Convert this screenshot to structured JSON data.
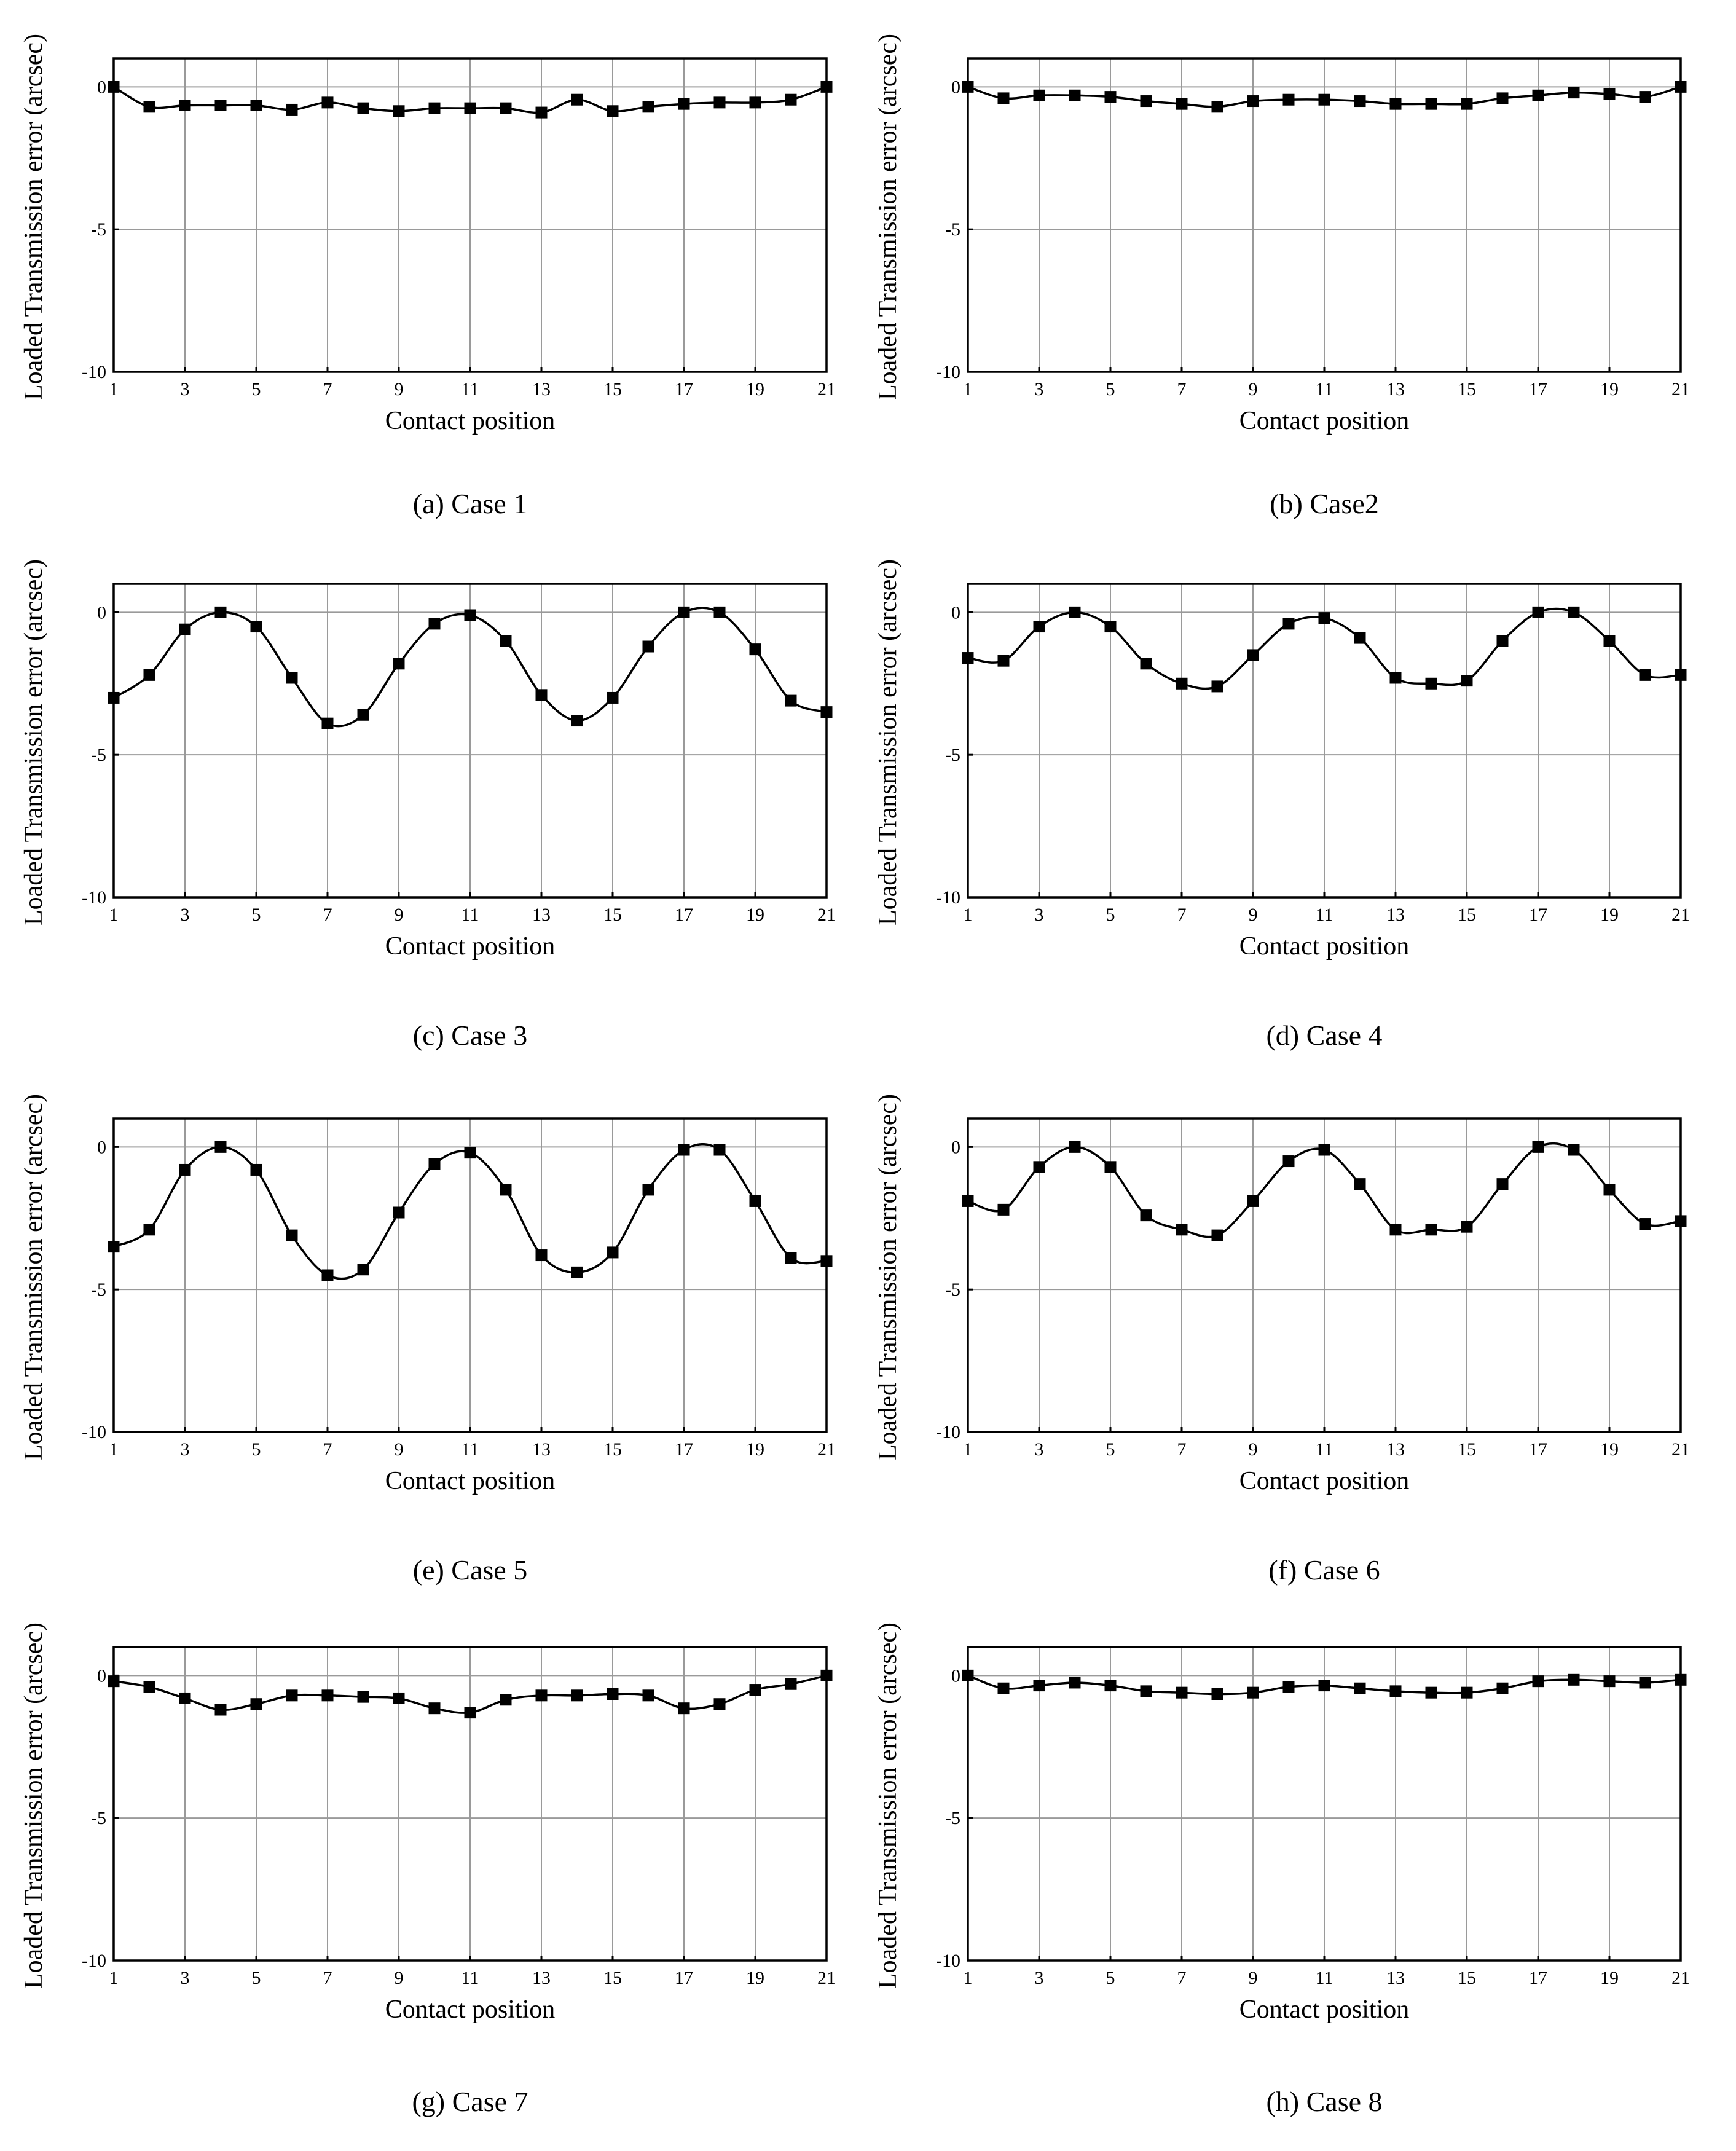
{
  "figure": {
    "x_ticks": [
      1,
      3,
      5,
      7,
      9,
      11,
      13,
      15,
      17,
      19,
      21
    ],
    "y_ticks": [
      0,
      -5,
      -10
    ],
    "y_tick_labels": [
      "0",
      "-5",
      "-10"
    ]
  },
  "chart_data": [
    {
      "type": "line",
      "caption": "(a) Case 1",
      "xlabel": "Contact position",
      "ylabel": "Loaded Transmission error (arcsec)",
      "xlim": [
        1,
        21
      ],
      "ylim": [
        -10,
        1
      ],
      "grid": true,
      "series": [
        {
          "name": "Case 1",
          "marker": "square",
          "x": [
            1,
            2,
            3,
            4,
            5,
            6,
            7,
            8,
            9,
            10,
            11,
            12,
            13,
            14,
            15,
            16,
            17,
            18,
            19,
            20,
            21
          ],
          "values": [
            0,
            -0.7,
            -0.65,
            -0.65,
            -0.65,
            -0.8,
            -0.55,
            -0.75,
            -0.85,
            -0.75,
            -0.75,
            -0.75,
            -0.9,
            -0.45,
            -0.85,
            -0.7,
            -0.6,
            -0.55,
            -0.55,
            -0.45,
            0
          ]
        }
      ]
    },
    {
      "type": "line",
      "caption": "(b) Case2",
      "xlabel": "Contact position",
      "ylabel": "Loaded Transmission error (arcsec)",
      "xlim": [
        1,
        21
      ],
      "ylim": [
        -10,
        1
      ],
      "grid": true,
      "series": [
        {
          "name": "Case 2",
          "marker": "square",
          "x": [
            1,
            2,
            3,
            4,
            5,
            6,
            7,
            8,
            9,
            10,
            11,
            12,
            13,
            14,
            15,
            16,
            17,
            18,
            19,
            20,
            21
          ],
          "values": [
            0,
            -0.4,
            -0.3,
            -0.3,
            -0.35,
            -0.5,
            -0.6,
            -0.7,
            -0.5,
            -0.45,
            -0.45,
            -0.5,
            -0.6,
            -0.6,
            -0.6,
            -0.4,
            -0.3,
            -0.2,
            -0.25,
            -0.35,
            0
          ]
        }
      ]
    },
    {
      "type": "line",
      "caption": "(c) Case 3",
      "xlabel": "Contact position",
      "ylabel": "Loaded Transmission error (arcsec)",
      "xlim": [
        1,
        21
      ],
      "ylim": [
        -10,
        1
      ],
      "grid": true,
      "series": [
        {
          "name": "Case 3",
          "marker": "square",
          "x": [
            1,
            2,
            3,
            4,
            5,
            6,
            7,
            8,
            9,
            10,
            11,
            12,
            13,
            14,
            15,
            16,
            17,
            18,
            19,
            20,
            21
          ],
          "values": [
            -3.0,
            -2.2,
            -0.6,
            0,
            -0.5,
            -2.3,
            -3.9,
            -3.6,
            -1.8,
            -0.4,
            -0.1,
            -1.0,
            -2.9,
            -3.8,
            -3.0,
            -1.2,
            0,
            0,
            -1.3,
            -3.1,
            -3.5
          ]
        }
      ]
    },
    {
      "type": "line",
      "caption": "(d) Case 4",
      "xlabel": "Contact position",
      "ylabel": "Loaded Transmission error (arcsec)",
      "xlim": [
        1,
        21
      ],
      "ylim": [
        -10,
        1
      ],
      "grid": true,
      "series": [
        {
          "name": "Case 4",
          "marker": "square",
          "x": [
            1,
            2,
            3,
            4,
            5,
            6,
            7,
            8,
            9,
            10,
            11,
            12,
            13,
            14,
            15,
            16,
            17,
            18,
            19,
            20,
            21
          ],
          "values": [
            -1.6,
            -1.7,
            -0.5,
            0,
            -0.5,
            -1.8,
            -2.5,
            -2.6,
            -1.5,
            -0.4,
            -0.2,
            -0.9,
            -2.3,
            -2.5,
            -2.4,
            -1.0,
            0,
            0,
            -1.0,
            -2.2,
            -2.2
          ]
        }
      ]
    },
    {
      "type": "line",
      "caption": "(e) Case 5",
      "xlabel": "Contact position",
      "ylabel": "Loaded Transmission error (arcsec)",
      "xlim": [
        1,
        21
      ],
      "ylim": [
        -10,
        1
      ],
      "grid": true,
      "series": [
        {
          "name": "Case 5",
          "marker": "square",
          "x": [
            1,
            2,
            3,
            4,
            5,
            6,
            7,
            8,
            9,
            10,
            11,
            12,
            13,
            14,
            15,
            16,
            17,
            18,
            19,
            20,
            21
          ],
          "values": [
            -3.5,
            -2.9,
            -0.8,
            0,
            -0.8,
            -3.1,
            -4.5,
            -4.3,
            -2.3,
            -0.6,
            -0.2,
            -1.5,
            -3.8,
            -4.4,
            -3.7,
            -1.5,
            -0.1,
            -0.1,
            -1.9,
            -3.9,
            -4.0
          ]
        }
      ]
    },
    {
      "type": "line",
      "caption": "(f) Case 6",
      "xlabel": "Contact position",
      "ylabel": "Loaded Transmission error (arcsec)",
      "xlim": [
        1,
        21
      ],
      "ylim": [
        -10,
        1
      ],
      "grid": true,
      "series": [
        {
          "name": "Case 6",
          "marker": "square",
          "x": [
            1,
            2,
            3,
            4,
            5,
            6,
            7,
            8,
            9,
            10,
            11,
            12,
            13,
            14,
            15,
            16,
            17,
            18,
            19,
            20,
            21
          ],
          "values": [
            -1.9,
            -2.2,
            -0.7,
            0,
            -0.7,
            -2.4,
            -2.9,
            -3.1,
            -1.9,
            -0.5,
            -0.1,
            -1.3,
            -2.9,
            -2.9,
            -2.8,
            -1.3,
            0,
            -0.1,
            -1.5,
            -2.7,
            -2.6
          ]
        }
      ]
    },
    {
      "type": "line",
      "caption": "(g) Case 7",
      "xlabel": "Contact position",
      "ylabel": "Loaded Transmission error (arcsec)",
      "xlim": [
        1,
        21
      ],
      "ylim": [
        -10,
        1
      ],
      "grid": true,
      "series": [
        {
          "name": "Case 7",
          "marker": "square",
          "x": [
            1,
            2,
            3,
            4,
            5,
            6,
            7,
            8,
            9,
            10,
            11,
            12,
            13,
            14,
            15,
            16,
            17,
            18,
            19,
            20,
            21
          ],
          "values": [
            -0.2,
            -0.4,
            -0.8,
            -1.2,
            -1.0,
            -0.7,
            -0.7,
            -0.75,
            -0.8,
            -1.15,
            -1.3,
            -0.85,
            -0.7,
            -0.7,
            -0.65,
            -0.7,
            -1.15,
            -1.0,
            -0.5,
            -0.3,
            0
          ]
        }
      ]
    },
    {
      "type": "line",
      "caption": "(h) Case 8",
      "xlabel": "Contact position",
      "ylabel": "Loaded Transmission error (arcsec)",
      "xlim": [
        1,
        21
      ],
      "ylim": [
        -10,
        1
      ],
      "grid": true,
      "series": [
        {
          "name": "Case 8",
          "marker": "square",
          "x": [
            1,
            2,
            3,
            4,
            5,
            6,
            7,
            8,
            9,
            10,
            11,
            12,
            13,
            14,
            15,
            16,
            17,
            18,
            19,
            20,
            21
          ],
          "values": [
            0,
            -0.45,
            -0.35,
            -0.25,
            -0.35,
            -0.55,
            -0.6,
            -0.65,
            -0.6,
            -0.4,
            -0.35,
            -0.45,
            -0.55,
            -0.6,
            -0.6,
            -0.45,
            -0.2,
            -0.15,
            -0.2,
            -0.25,
            -0.15
          ]
        }
      ]
    }
  ]
}
